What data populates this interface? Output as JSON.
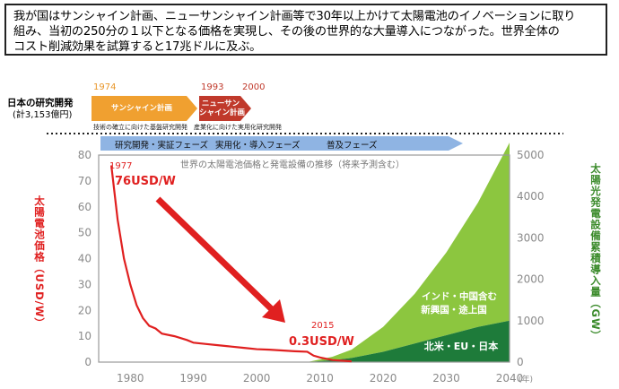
{
  "summary": {
    "lines": [
      "我が国はサンシャイン計画、ニューサンシャイン計画等で30年以上かけて太陽電池のイノベーションに取り",
      "組み、当初の250分の１以下となる価格を実現し、その後の世界的な大量導入につながった。世界全体の",
      "コスト削減効果を試算すると17兆ドルに及ぶ。"
    ]
  },
  "rd": {
    "label": "日本の研究開発",
    "amount": "(計3,153億円)",
    "year_1974": "1974",
    "year_1993": "1993",
    "year_2000": "2000",
    "sunshine": "サンシャイン計画",
    "new_sunshine_line1": "ニューサン",
    "new_sunshine_line2": "シャイン計画",
    "foot1": "技術の確立に向けた基盤研究開発",
    "foot2": "産業化に向けた実用化研究開発"
  },
  "phases": [
    "研究開発・実証フェーズ",
    "実用化・導入フェーズ",
    "普及フェーズ"
  ],
  "colors": {
    "orange": "#f0a030",
    "dark_red": "#c0392b",
    "phase_blue": "#8fb4e3",
    "price_red": "#e02020",
    "light_green": "#8cc63f",
    "dark_green": "#1e7b3a",
    "tick_gray": "#8a8a8a"
  },
  "chart_data": {
    "type": "area",
    "title": "世界の太陽電池価格と発電設備の推移（将来予測含む）",
    "xlabel": "(年)",
    "ylabel": "太陽電池価格（USD/W）",
    "y2label": "太陽光発電設備累積導入量（GW）",
    "xlim": [
      1975,
      2040
    ],
    "ylim": [
      0,
      80
    ],
    "y2lim": [
      0,
      5000
    ],
    "x_ticks": [
      "1980",
      "1990",
      "2000",
      "2010",
      "2020",
      "2030",
      "2040"
    ],
    "y_ticks": [
      "0",
      "10",
      "20",
      "30",
      "40",
      "50",
      "60",
      "70",
      "80"
    ],
    "y2_ticks": [
      "0",
      "1000",
      "2000",
      "3000",
      "4000",
      "5000"
    ],
    "series": [
      {
        "name": "",
        "type": "line",
        "axis": "left",
        "x": [
          1977,
          1978,
          1979,
          1980,
          1981,
          1982,
          1983,
          1984,
          1985,
          1987,
          1989,
          1990,
          1992,
          1994,
          1996,
          1998,
          2000,
          2002,
          2004,
          2006,
          2008,
          2009,
          2010,
          2012,
          2015
        ],
        "values": [
          76,
          55,
          40,
          30,
          22,
          17,
          14,
          13,
          11,
          10,
          8.5,
          7.5,
          7,
          6.5,
          6,
          5.5,
          5,
          4.8,
          4.5,
          4.2,
          4,
          2.5,
          1.8,
          0.8,
          0.3
        ]
      },
      {
        "name": "北米・EU・日本",
        "type": "area",
        "axis": "right",
        "x": [
          2008,
          2012,
          2015,
          2020,
          2025,
          2030,
          2035,
          2040
        ],
        "values": [
          0,
          50,
          100,
          250,
          450,
          650,
          850,
          1000
        ]
      },
      {
        "name": "インド・中国含む 新興国・途上国",
        "type": "area",
        "axis": "right",
        "x": [
          2008,
          2012,
          2015,
          2020,
          2025,
          2030,
          2035,
          2040
        ],
        "values": [
          0,
          80,
          200,
          600,
          1200,
          2000,
          3000,
          4300
        ]
      }
    ],
    "annotations": {
      "start_year": "1977",
      "start_price": "76USD/W",
      "end_year": "2015",
      "end_price": "0.3USD/W",
      "x_unit": "(年)",
      "region_emerging_line1": "インド・中国含む",
      "region_emerging_line2": "新興国・途上国",
      "region_developed": "北米・EU・日本"
    }
  }
}
